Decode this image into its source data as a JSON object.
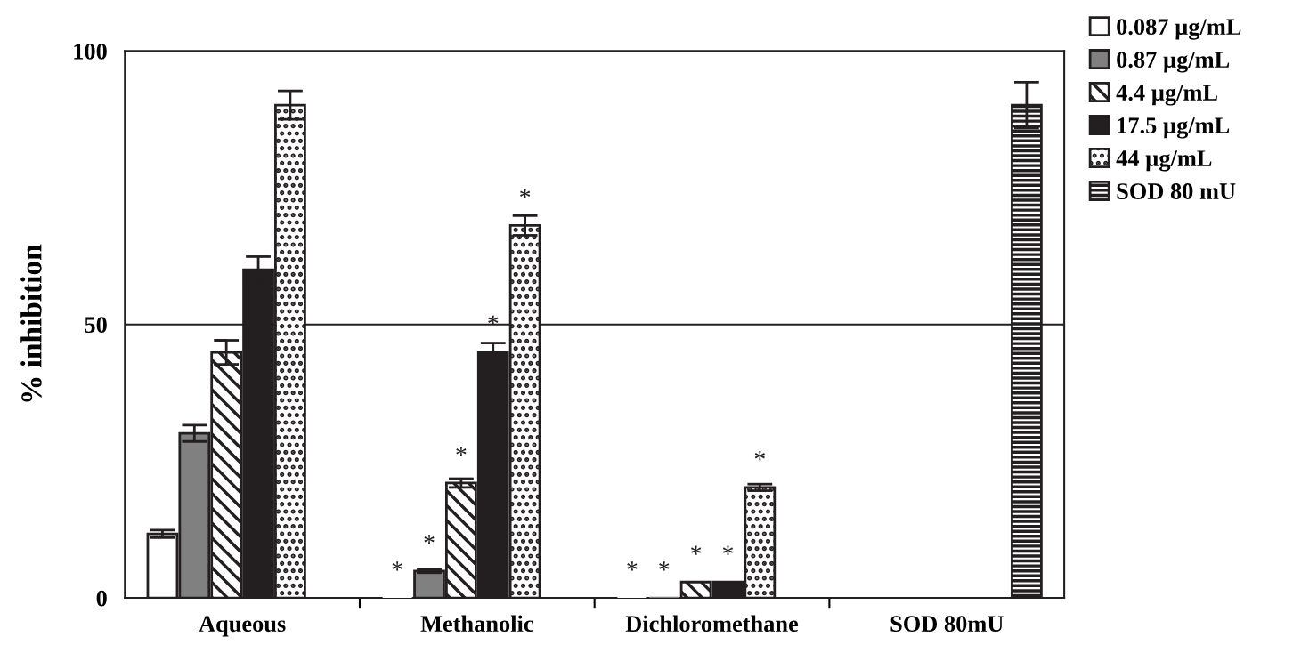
{
  "chart_data": {
    "type": "bar",
    "ylabel": "% inhibition",
    "categories": [
      "Aqueous",
      "Methanolic",
      "Dichloromethane",
      "SOD 80mU"
    ],
    "series": [
      {
        "name": "0.087 µg/mL",
        "color": "#ffffff",
        "values": [
          11.7,
          0,
          0,
          null
        ],
        "errors": [
          0.7,
          null,
          null,
          null
        ],
        "value_labels": [
          null,
          "*",
          "*",
          null
        ]
      },
      {
        "name": "0.87 µg/mL",
        "color": "#808080",
        "values": [
          30.1,
          4.9,
          0,
          null
        ],
        "errors": [
          1.5,
          0.3,
          null,
          null
        ],
        "value_labels": [
          null,
          "*",
          "*",
          null
        ]
      },
      {
        "name": "4.4 µg/mL",
        "color": "#231f20",
        "values": [
          44.9,
          21,
          2.9,
          null
        ],
        "errors": [
          2.2,
          0.8,
          null,
          null
        ],
        "value_labels": [
          null,
          "*",
          "*",
          null
        ]
      },
      {
        "name": "17.5 µg/mL",
        "color": "#231f20",
        "values": [
          60,
          45,
          2.9,
          null
        ],
        "errors": [
          2.4,
          1.6,
          null,
          null
        ],
        "value_labels": [
          null,
          "*",
          "*",
          null
        ]
      },
      {
        "name": "44 µg/mL",
        "color": "#231f20",
        "values": [
          90.1,
          68.1,
          20.2,
          null
        ],
        "errors": [
          2.6,
          1.8,
          0.6,
          null
        ],
        "value_labels": [
          null,
          "*",
          "*",
          null
        ]
      },
      {
        "name": "SOD 80 mU",
        "color": "#231f20",
        "values": [
          null,
          null,
          null,
          90.1
        ],
        "errors": [
          null,
          null,
          null,
          4.2
        ],
        "value_labels": [
          null,
          null,
          null,
          null
        ]
      }
    ],
    "ylim": [
      0,
      100
    ],
    "yticks": [
      0,
      50,
      100
    ],
    "grid": "y",
    "legend": "top right"
  }
}
